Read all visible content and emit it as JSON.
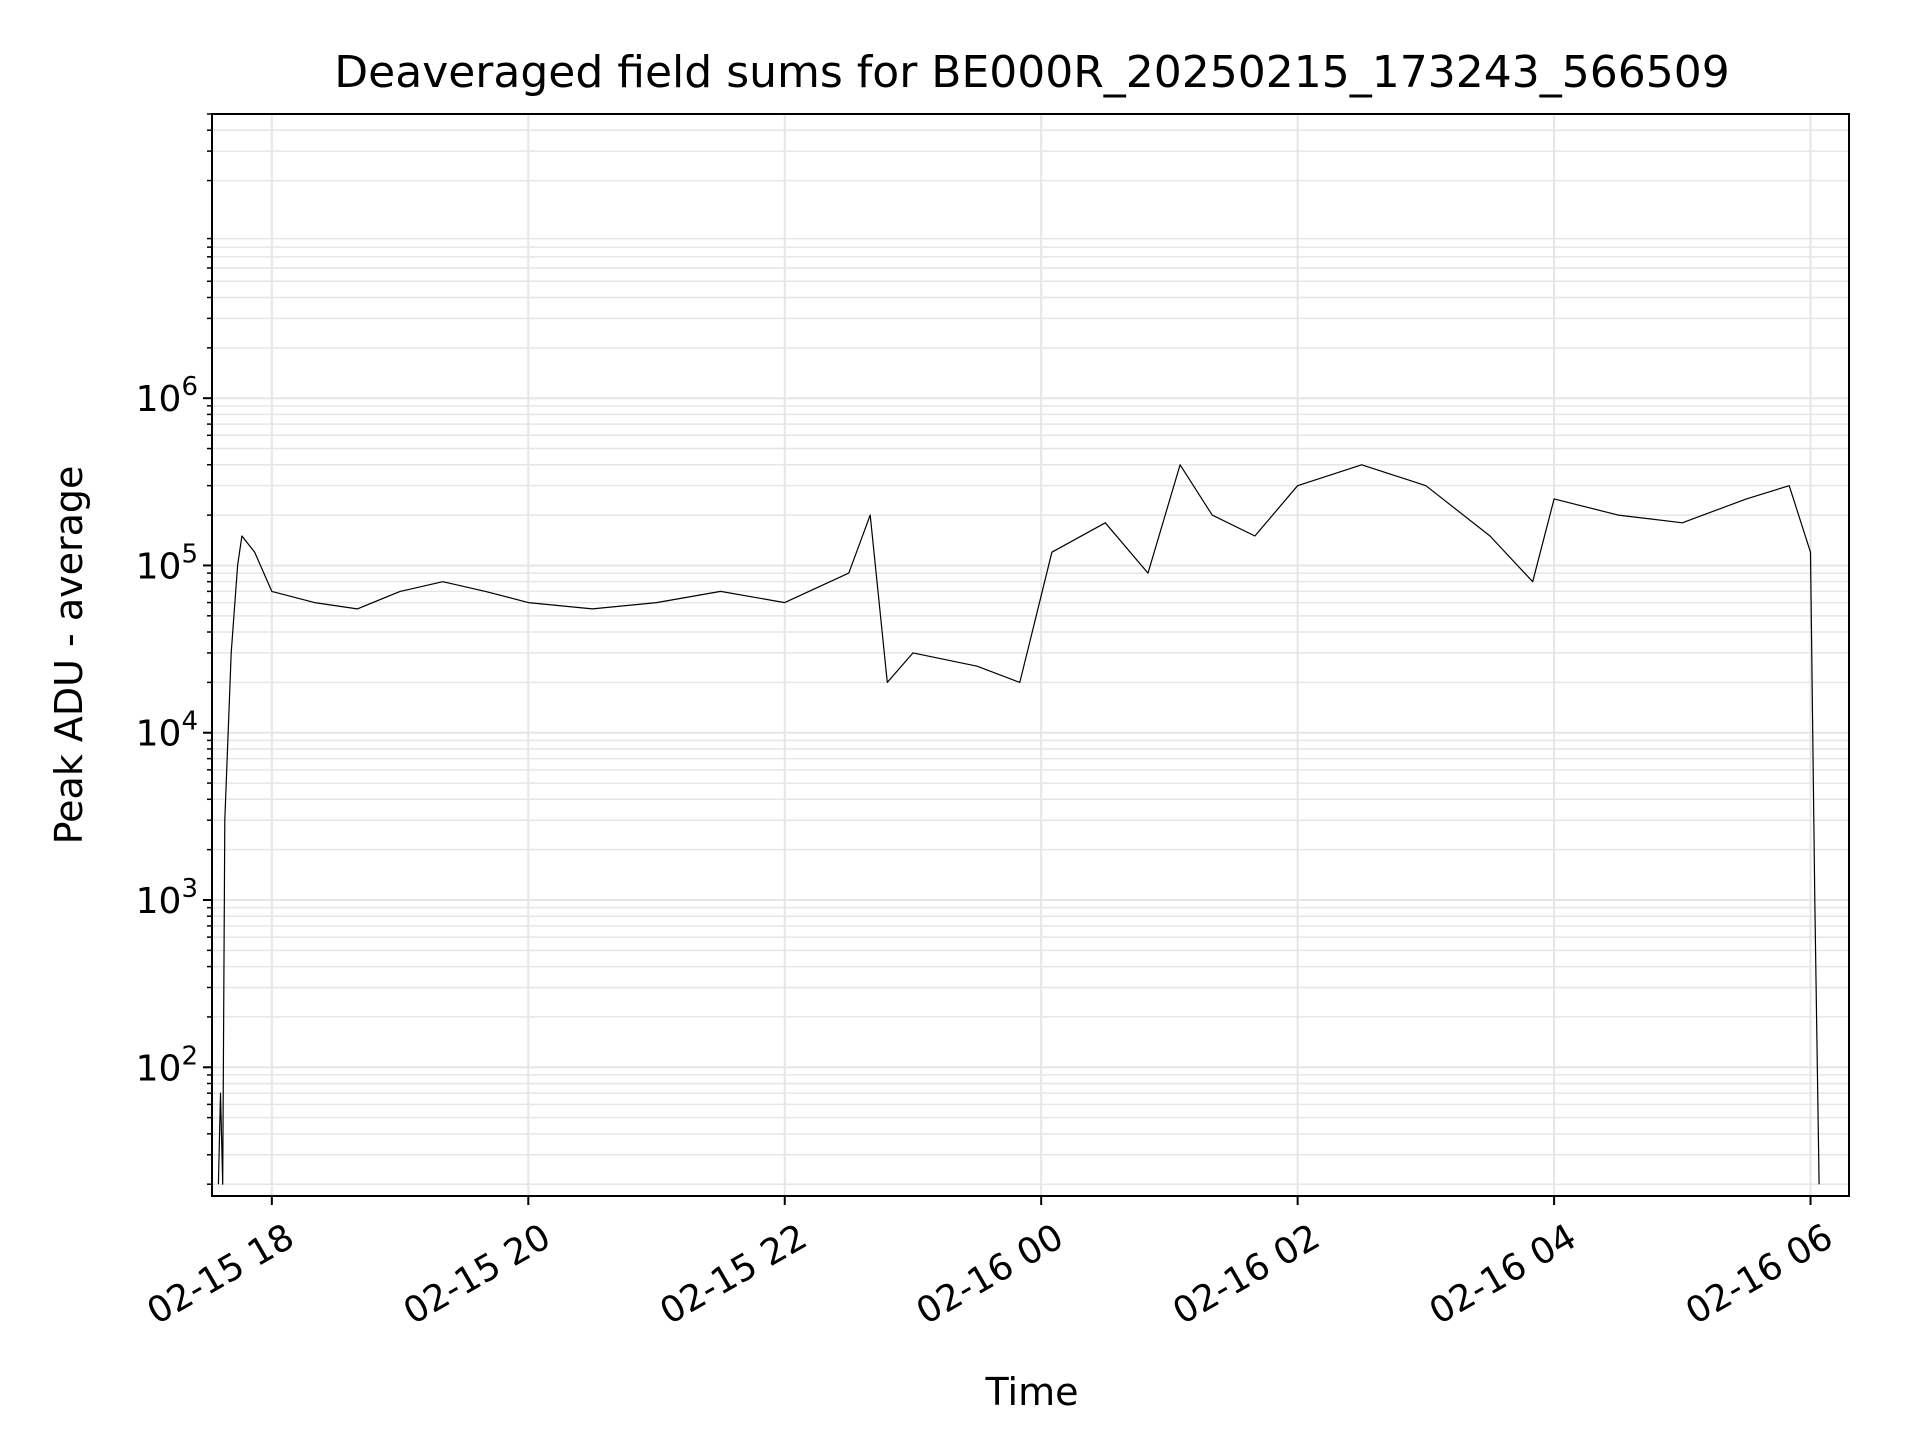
{
  "chart_data": {
    "type": "line",
    "title": "Deaveraged field sums for BE000R_20250215_173243_566509",
    "xlabel": "Time",
    "ylabel": "Peak ADU - average",
    "yscale": "log",
    "ylim": [
      17,
      50000000
    ],
    "xlim": [
      "2025-02-15T17:32",
      "2025-02-16T06:18"
    ],
    "grid": true,
    "x_ticks": [
      {
        "label": "02-15 18",
        "time": "2025-02-15T18:00"
      },
      {
        "label": "02-15 20",
        "time": "2025-02-15T20:00"
      },
      {
        "label": "02-15 22",
        "time": "2025-02-15T22:00"
      },
      {
        "label": "02-16 00",
        "time": "2025-02-16T00:00"
      },
      {
        "label": "02-16 02",
        "time": "2025-02-16T02:00"
      },
      {
        "label": "02-16 04",
        "time": "2025-02-16T04:00"
      },
      {
        "label": "02-16 06",
        "time": "2025-02-16T06:00"
      }
    ],
    "y_ticks": [
      {
        "value": 100,
        "base": "10",
        "exp": "2"
      },
      {
        "value": 1000,
        "base": "10",
        "exp": "3"
      },
      {
        "value": 10000,
        "base": "10",
        "exp": "4"
      },
      {
        "value": 100000,
        "base": "10",
        "exp": "5"
      },
      {
        "value": 1000000,
        "base": "10",
        "exp": "6"
      }
    ],
    "series": [
      {
        "color": "#000000",
        "points": [
          [
            "2025-02-15T17:35",
            20
          ],
          [
            "2025-02-15T17:36",
            70
          ],
          [
            "2025-02-15T17:37",
            20
          ],
          [
            "2025-02-15T17:38",
            3000
          ],
          [
            "2025-02-15T17:41",
            30000
          ],
          [
            "2025-02-15T17:44",
            100000
          ],
          [
            "2025-02-15T17:46",
            150000
          ],
          [
            "2025-02-15T17:52",
            120000
          ],
          [
            "2025-02-15T18:00",
            70000
          ],
          [
            "2025-02-15T18:20",
            60000
          ],
          [
            "2025-02-15T18:40",
            55000
          ],
          [
            "2025-02-15T19:00",
            70000
          ],
          [
            "2025-02-15T19:20",
            80000
          ],
          [
            "2025-02-15T19:40",
            70000
          ],
          [
            "2025-02-15T20:00",
            60000
          ],
          [
            "2025-02-15T20:30",
            55000
          ],
          [
            "2025-02-15T21:00",
            60000
          ],
          [
            "2025-02-15T21:30",
            70000
          ],
          [
            "2025-02-15T22:00",
            60000
          ],
          [
            "2025-02-15T22:30",
            90000
          ],
          [
            "2025-02-15T22:40",
            200000
          ],
          [
            "2025-02-15T22:48",
            20000
          ],
          [
            "2025-02-15T23:00",
            30000
          ],
          [
            "2025-02-15T23:30",
            25000
          ],
          [
            "2025-02-15T23:50",
            20000
          ],
          [
            "2025-02-16T00:05",
            120000
          ],
          [
            "2025-02-16T00:30",
            180000
          ],
          [
            "2025-02-16T00:50",
            90000
          ],
          [
            "2025-02-16T01:05",
            400000
          ],
          [
            "2025-02-16T01:20",
            200000
          ],
          [
            "2025-02-16T01:40",
            150000
          ],
          [
            "2025-02-16T02:00",
            300000
          ],
          [
            "2025-02-16T02:30",
            400000
          ],
          [
            "2025-02-16T03:00",
            300000
          ],
          [
            "2025-02-16T03:30",
            150000
          ],
          [
            "2025-02-16T03:50",
            80000
          ],
          [
            "2025-02-16T04:00",
            250000
          ],
          [
            "2025-02-16T04:30",
            200000
          ],
          [
            "2025-02-16T05:00",
            180000
          ],
          [
            "2025-02-16T05:30",
            250000
          ],
          [
            "2025-02-16T05:50",
            300000
          ],
          [
            "2025-02-16T06:00",
            120000
          ],
          [
            "2025-02-16T06:02",
            1000
          ],
          [
            "2025-02-16T06:04",
            20
          ]
        ]
      }
    ]
  }
}
